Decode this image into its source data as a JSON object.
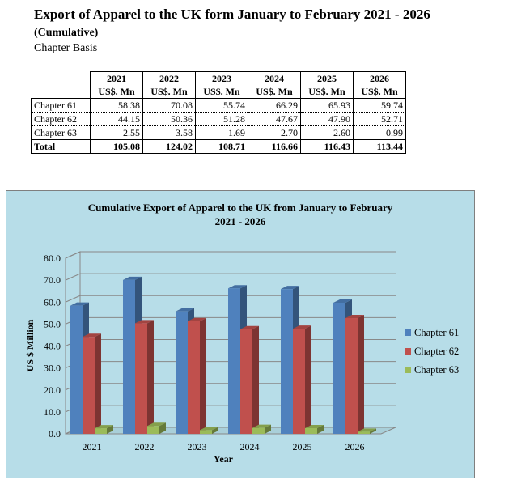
{
  "title": "Export of Apparel to the UK form January to February 2021 - 2026",
  "subtitle": "(Cumulative)",
  "basis": "Chapter Basis",
  "table": {
    "years": [
      "2021",
      "2022",
      "2023",
      "2024",
      "2025",
      "2026"
    ],
    "unit": "US$. Mn",
    "rows": [
      {
        "label": "Chapter 61",
        "values": [
          "58.38",
          "70.08",
          "55.74",
          "66.29",
          "65.93",
          "59.74"
        ]
      },
      {
        "label": "Chapter 62",
        "values": [
          "44.15",
          "50.36",
          "51.28",
          "47.67",
          "47.90",
          "52.71"
        ]
      },
      {
        "label": "Chapter 63",
        "values": [
          "2.55",
          "3.58",
          "1.69",
          "2.70",
          "2.60",
          "0.99"
        ]
      }
    ],
    "total": {
      "label": "Total",
      "values": [
        "105.08",
        "124.02",
        "108.71",
        "116.66",
        "116.43",
        "113.44"
      ]
    }
  },
  "chart_data": {
    "type": "bar",
    "title_line1": "Cumulative Export of Apparel to the UK from  January to February",
    "title_line2": "2021 - 2026",
    "xlabel": "Year",
    "ylabel": "US $ Million",
    "categories": [
      "2021",
      "2022",
      "2023",
      "2024",
      "2025",
      "2026"
    ],
    "ylim": [
      0,
      80
    ],
    "yticks": [
      "0.0",
      "10.0",
      "20.0",
      "30.0",
      "40.0",
      "50.0",
      "60.0",
      "70.0",
      "80.0"
    ],
    "legend_position": "right",
    "series": [
      {
        "name": "Chapter 61",
        "values": [
          58.38,
          70.08,
          55.74,
          66.29,
          65.93,
          59.74
        ],
        "color": "#4f81bd"
      },
      {
        "name": "Chapter 62",
        "values": [
          44.15,
          50.36,
          51.28,
          47.67,
          47.9,
          52.71
        ],
        "color": "#c0504d"
      },
      {
        "name": "Chapter 63",
        "values": [
          2.55,
          3.58,
          1.69,
          2.7,
          2.6,
          0.99
        ],
        "color": "#9bbb59"
      }
    ]
  }
}
